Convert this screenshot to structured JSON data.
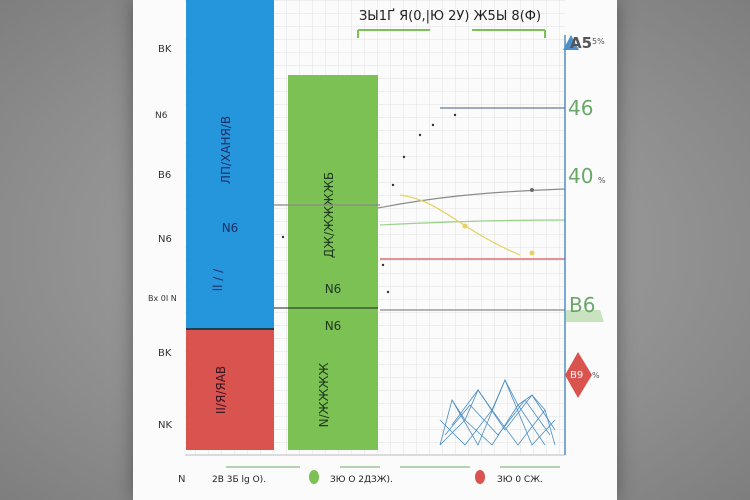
{
  "colors": {
    "blue": "#2596dc",
    "green": "#7cc153",
    "red": "#d9534f",
    "grid": "#e2e2e2",
    "right_axis": "#4f90c8",
    "line_gray": "#8a8a8a",
    "line_yellow": "#e6d25e",
    "line_green": "#9ad18a",
    "line_red": "#e07070",
    "lattice": "#4a8ec4"
  },
  "chart_data": {
    "type": "bar",
    "title": "ЗЫ1Ґ Я(0,|Ю 2У) Ж5Ы 8(Ф)",
    "xlabel": "",
    "ylabel": "",
    "left_ticks": [
      "BK",
      "N6",
      "B6",
      "N6",
      "Bx 0I N",
      "BK",
      "NK"
    ],
    "right_ticks": [
      "A5",
      "46",
      "40",
      "B6",
      "B9"
    ],
    "right_ticks_small": [
      "5%",
      "",
      "%",
      "",
      "%"
    ],
    "bars": [
      {
        "name": "blue",
        "label_upper": "ЛП/ХАНЯ/В",
        "label_mid": "N6",
        "label_low": "ll / /",
        "value_top": 1.0,
        "value_bottom": 0.34
      },
      {
        "name": "red",
        "label_upper": "II/Я/ЯАВ",
        "value_top": 0.34,
        "value_bottom": 0.0
      },
      {
        "name": "green",
        "label_upper": "ДЖ/ЖЖЖЖБ",
        "label_mid": "N6",
        "label_mid2": "N6",
        "label_low": "N/ЖЖЖЖ",
        "value_top": 0.85,
        "value_bottom": 0.0
      }
    ],
    "lines": [
      {
        "name": "gray-upper",
        "y": [
          0.7,
          0.79
        ]
      },
      {
        "name": "gray-mid",
        "y": [
          0.62,
          0.67
        ]
      },
      {
        "name": "red-line",
        "y": [
          0.5,
          0.5
        ]
      },
      {
        "name": "gray-low",
        "y": [
          0.37,
          0.37
        ]
      }
    ],
    "legend": [
      {
        "label": "2В 3Б lg О).",
        "color": "#ffffff"
      },
      {
        "label": "ЗЮ О 2ДЗЖ).",
        "color": "#7cc153"
      },
      {
        "label": "ЗЮ 0 СЖ.",
        "color": "#d9534f"
      }
    ],
    "legend_prefix": "N",
    "grid": true,
    "legend_position": "bottom"
  }
}
